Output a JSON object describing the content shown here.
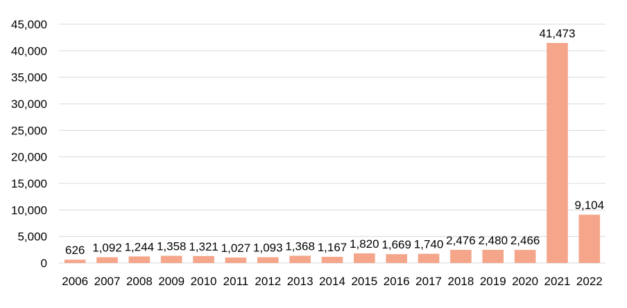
{
  "chart_data": {
    "type": "bar",
    "categories": [
      "2006",
      "2007",
      "2008",
      "2009",
      "2010",
      "2011",
      "2012",
      "2013",
      "2014",
      "2015",
      "2016",
      "2017",
      "2018",
      "2019",
      "2020",
      "2021",
      "2022"
    ],
    "values": [
      626,
      1092,
      1244,
      1358,
      1321,
      1027,
      1093,
      1368,
      1167,
      1820,
      1669,
      1740,
      2476,
      2480,
      2466,
      41473,
      9104
    ],
    "data_labels": [
      "626",
      "1,092",
      "1,244",
      "1,358",
      "1,321",
      "1,027",
      "1,093",
      "1,368",
      "1,167",
      "1,820",
      "1,669",
      "1,740",
      "2,476",
      "2,480",
      "2,466",
      "41,473",
      "9,104"
    ],
    "y_ticks": [
      0,
      5000,
      10000,
      15000,
      20000,
      25000,
      30000,
      35000,
      40000,
      45000
    ],
    "y_tick_labels": [
      "0",
      "5,000",
      "10,000",
      "15,000",
      "20,000",
      "25,000",
      "30,000",
      "35,000",
      "40,000",
      "45,000"
    ],
    "ylim": [
      0,
      45000
    ],
    "grid": true,
    "legend": "none",
    "title": "",
    "xlabel": "",
    "ylabel": "",
    "bar_color": "#f4a58a",
    "grid_color": "#d9d9d9"
  }
}
